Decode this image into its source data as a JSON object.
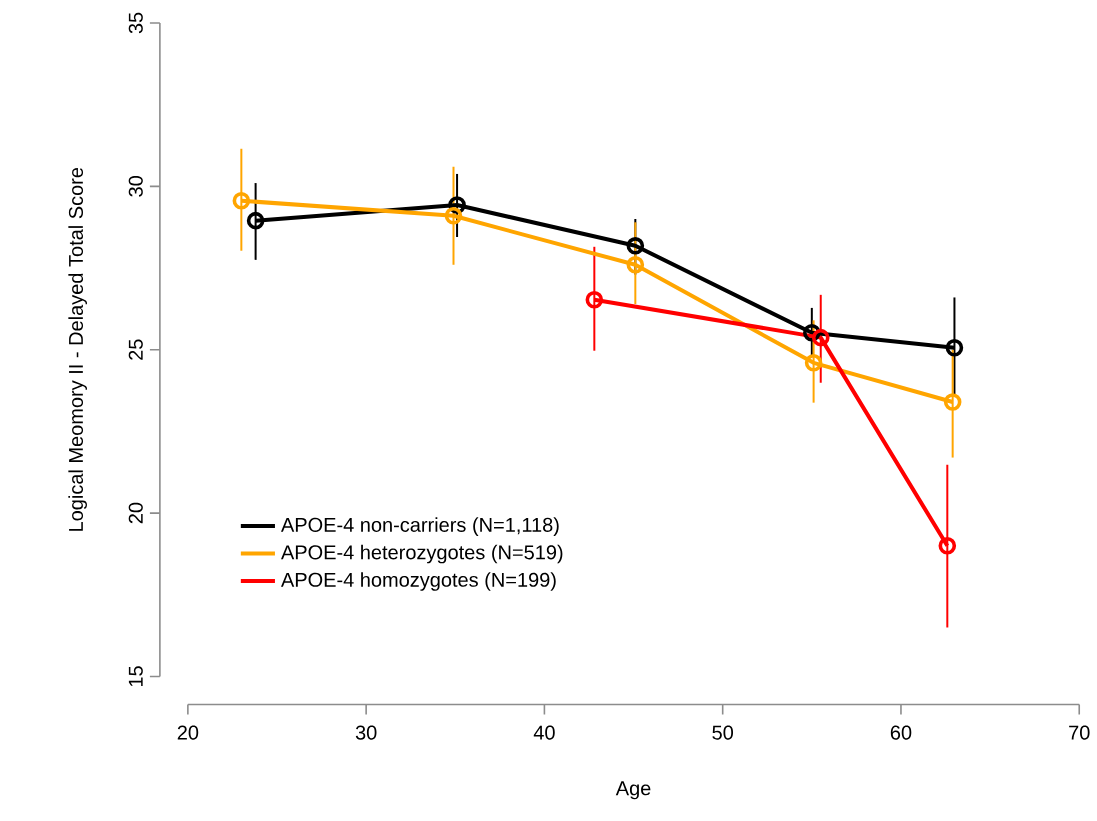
{
  "chart_data": {
    "type": "line",
    "xlabel": "Age",
    "ylabel": "Logical Meomory II - Delayed Total Score",
    "xlim": [
      20,
      70
    ],
    "xticks": [
      20,
      30,
      40,
      50,
      60,
      70
    ],
    "ylim": [
      15,
      35
    ],
    "yticks": [
      15,
      20,
      25,
      30,
      35
    ],
    "marker": "circle",
    "line_style": "solid",
    "legend": "bottom left",
    "grid": false,
    "series": [
      {
        "name": "APOE-4 non-carriers (N=1,118)",
        "color": "#000000",
        "x": [
          23.8,
          35.1,
          45.1,
          55.0,
          63.0
        ],
        "values": [
          28.95,
          29.43,
          28.18,
          25.52,
          25.06
        ],
        "errors": [
          [
            27.75,
            30.1
          ],
          [
            28.45,
            30.38
          ],
          [
            27.3,
            29.0
          ],
          [
            24.8,
            26.28
          ],
          [
            23.56,
            26.6
          ]
        ]
      },
      {
        "name": "APOE-4 heterozygotes (N=519)",
        "color": "#ffa500",
        "x": [
          23.0,
          34.9,
          45.1,
          55.1,
          62.9
        ],
        "values": [
          29.56,
          29.1,
          27.6,
          24.6,
          23.4
        ],
        "errors": [
          [
            28.03,
            31.15
          ],
          [
            27.6,
            30.6
          ],
          [
            26.4,
            28.9
          ],
          [
            23.38,
            25.9
          ],
          [
            21.7,
            25.0
          ]
        ]
      },
      {
        "name": "APOE-4 homozygotes (N=199)",
        "color": "#ff0000",
        "x": [
          42.8,
          55.5,
          62.6
        ],
        "values": [
          26.53,
          25.37,
          19.0
        ],
        "errors": [
          [
            24.97,
            28.15
          ],
          [
            23.99,
            26.68
          ],
          [
            16.5,
            21.48
          ]
        ]
      }
    ]
  }
}
